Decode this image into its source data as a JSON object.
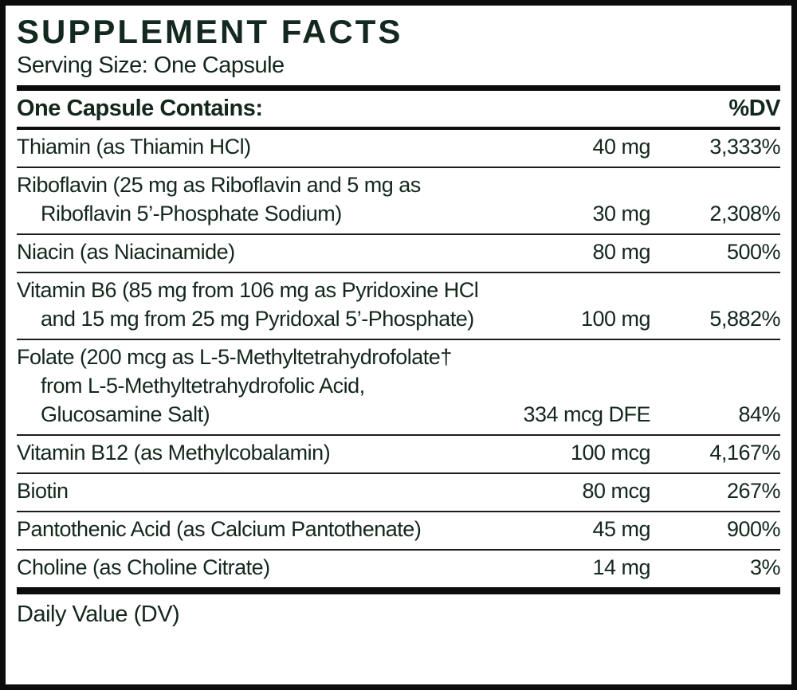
{
  "label": {
    "title": "SUPPLEMENT FACTS",
    "serving_size": "Serving Size: One Capsule",
    "columns": {
      "left_header": "One Capsule Contains:",
      "right_header": "%DV"
    },
    "rows": [
      {
        "name_lines": [
          "Thiamin (as Thiamin HCl)"
        ],
        "amount": "40 mg",
        "dv": "3,333%"
      },
      {
        "name_lines": [
          "Riboflavin (25 mg as Riboflavin and 5 mg as",
          "Riboflavin 5’-Phosphate Sodium)"
        ],
        "amount": "30 mg",
        "dv": "2,308%"
      },
      {
        "name_lines": [
          "Niacin (as Niacinamide)"
        ],
        "amount": "80 mg",
        "dv": "500%"
      },
      {
        "name_lines": [
          "Vitamin B6 (85 mg from 106 mg as Pyridoxine HCl",
          "and 15 mg from 25 mg Pyridoxal 5’-Phosphate)"
        ],
        "amount": "100 mg",
        "dv": "5,882%"
      },
      {
        "name_lines": [
          "Folate (200 mcg as L-5-Methyltetrahydrofolate†",
          "from L-5-Methyltetrahydrofolic Acid,",
          "Glucosamine Salt)"
        ],
        "amount": "334 mcg DFE",
        "dv": "84%"
      },
      {
        "name_lines": [
          "Vitamin B12 (as Methylcobalamin)"
        ],
        "amount": "100 mcg",
        "dv": "4,167%"
      },
      {
        "name_lines": [
          "Biotin"
        ],
        "amount": "80 mcg",
        "dv": "267%"
      },
      {
        "name_lines": [
          "Pantothenic Acid (as Calcium Pantothenate)"
        ],
        "amount": "45 mg",
        "dv": "900%"
      },
      {
        "name_lines": [
          "Choline (as Choline Citrate)"
        ],
        "amount": "14 mg",
        "dv": "3%"
      }
    ],
    "footnote": "Daily Value (DV)",
    "colors": {
      "text": "#14271d",
      "title_text": "#13281e",
      "rule": "#0c0c0c",
      "background": "#ffffff"
    }
  }
}
